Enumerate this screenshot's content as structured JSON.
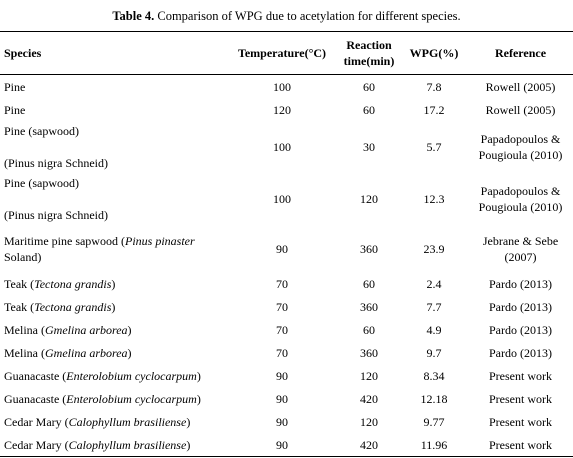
{
  "caption": {
    "label": "Table 4.",
    "text": " Comparison of WPG due to acetylation for different species."
  },
  "headers": {
    "species": "Species",
    "temperature": "Temperature(°C)",
    "reaction_line1": "Reaction",
    "reaction_line2": "time(min)",
    "wpg": "WPG(%)",
    "reference": "Reference"
  },
  "rows": [
    {
      "species": "Pine",
      "italic": "",
      "suffix": "",
      "temperature": "100",
      "time": "60",
      "wpg": "7.8",
      "reference": "Rowell (2005)",
      "reference2": ""
    },
    {
      "species": "Pine",
      "italic": "",
      "suffix": "",
      "temperature": "120",
      "time": "60",
      "wpg": "17.2",
      "reference": "Rowell (2005)",
      "reference2": ""
    },
    {
      "species": "Pine (sapwood)",
      "species2": "(Pinus nigra Schneid)",
      "temperature": "100",
      "time": "30",
      "wpg": "5.7",
      "reference": "Papadopoulos &",
      "reference2": "Pougioula (2010)"
    },
    {
      "species": "Pine (sapwood)",
      "species2": "(Pinus nigra Schneid)",
      "temperature": "100",
      "time": "120",
      "wpg": "12.3",
      "reference": "Papadopoulos &",
      "reference2": "Pougioula (2010)"
    },
    {
      "species_pre": "Maritime pine sapwood (",
      "italic": "Pinus pinaster",
      "species_line2": "Soland)",
      "temperature": "90",
      "time": "360",
      "wpg": "23.9",
      "reference": "Jebrane & Sebe",
      "reference2": "(2007)"
    },
    {
      "species_pre": "Teak (",
      "italic": "Tectona grandis",
      "suffix": ")",
      "temperature": "70",
      "time": "60",
      "wpg": "2.4",
      "reference": "Pardo (2013)"
    },
    {
      "species_pre": "Teak (",
      "italic": "Tectona grandis",
      "suffix": ")",
      "temperature": "70",
      "time": "360",
      "wpg": "7.7",
      "reference": "Pardo (2013)"
    },
    {
      "species_pre": "Melina (",
      "italic": "Gmelina arborea",
      "suffix": ")",
      "temperature": "70",
      "time": "60",
      "wpg": "4.9",
      "reference": "Pardo (2013)"
    },
    {
      "species_pre": "Melina (",
      "italic": "Gmelina arborea",
      "suffix": ")",
      "temperature": "70",
      "time": "360",
      "wpg": "9.7",
      "reference": "Pardo (2013)"
    },
    {
      "species_pre": "Guanacaste (",
      "italic": "Enterolobium cyclocarpum",
      "suffix": ")",
      "temperature": "90",
      "time": "120",
      "wpg": "8.34",
      "reference": "Present work"
    },
    {
      "species_pre": "Guanacaste (",
      "italic": "Enterolobium cyclocarpum",
      "suffix": ")",
      "temperature": "90",
      "time": "420",
      "wpg": "12.18",
      "reference": "Present work"
    },
    {
      "species_pre": "Cedar Mary (",
      "italic": "Calophyllum brasiliense",
      "suffix": ")",
      "temperature": "90",
      "time": "120",
      "wpg": "9.77",
      "reference": "Present work"
    },
    {
      "species_pre": "Cedar Mary (",
      "italic": "Calophyllum brasiliense",
      "suffix": ")",
      "temperature": "90",
      "time": "420",
      "wpg": "11.96",
      "reference": "Present work"
    }
  ]
}
